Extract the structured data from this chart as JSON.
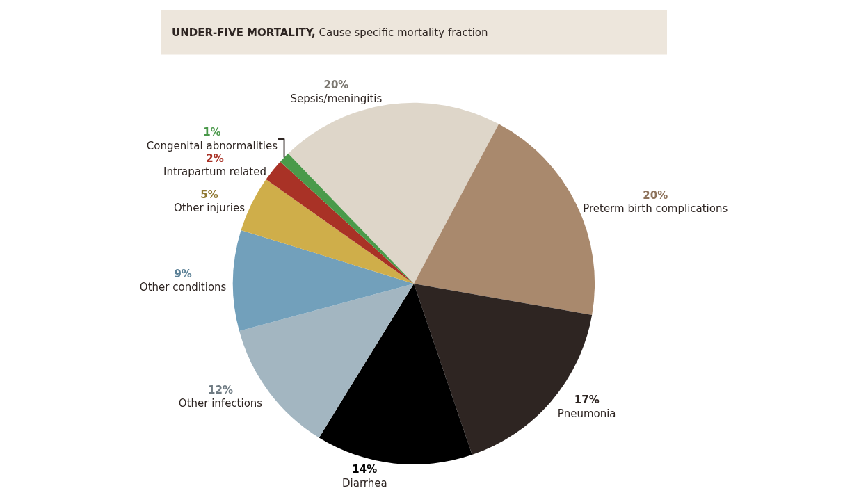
{
  "chart_data": {
    "type": "pie",
    "title": "UNDER-FIVE MORTALITY, Cause specific mortality fraction",
    "categories": [
      "Sepsis/meningitis",
      "Preterm birth complications",
      "Pneumonia",
      "Diarrhea",
      "Other infections",
      "Other conditions",
      "Other injuries",
      "Intrapartum related",
      "Congenital abnormalities"
    ],
    "values": [
      20,
      20,
      17,
      14,
      12,
      9,
      5,
      2,
      1
    ],
    "value_labels": [
      "20%",
      "20%",
      "17%",
      "14%",
      "12%",
      "9%",
      "5%",
      "2%",
      "1%"
    ],
    "colors": [
      "#ded6c9",
      "#a9896d",
      "#2e2522",
      "#000000",
      "#a3b6c1",
      "#72a0bb",
      "#cfae4a",
      "#a93226",
      "#4a9a4a"
    ],
    "legend": false
  }
}
